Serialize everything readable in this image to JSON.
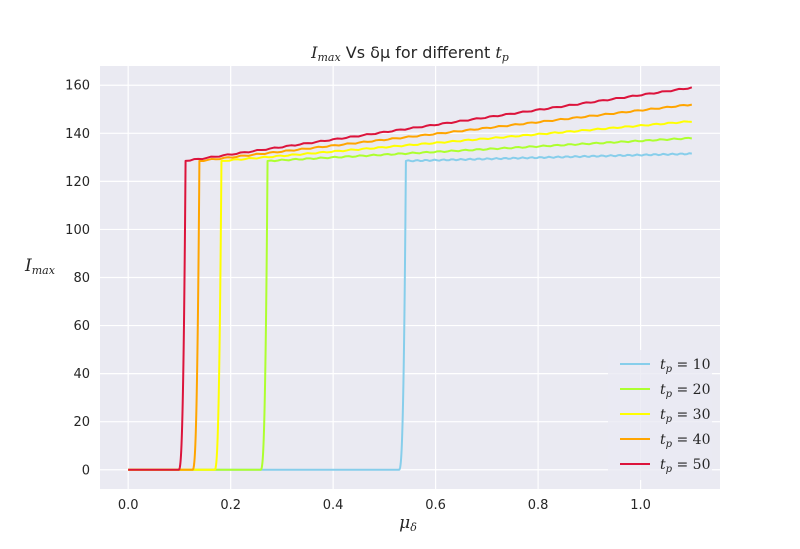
{
  "chart_data": {
    "type": "line",
    "title": {
      "base": "I",
      "base_sub": "max",
      "mid": " Vs δμ for different ",
      "end": "t",
      "end_sub": "p"
    },
    "xlabel": {
      "base": "μ",
      "sub": "δ"
    },
    "ylabel": {
      "base": "I",
      "sub": "max"
    },
    "xlim": [
      -0.055,
      1.155
    ],
    "ylim": [
      -8,
      168
    ],
    "xticks": [
      0.0,
      0.2,
      0.4,
      0.6,
      0.8,
      1.0
    ],
    "xtick_labels": [
      "0.0",
      "0.2",
      "0.4",
      "0.6",
      "0.8",
      "1.0"
    ],
    "yticks": [
      0,
      20,
      40,
      60,
      80,
      100,
      120,
      140,
      160
    ],
    "ytick_labels": [
      "0",
      "20",
      "40",
      "60",
      "80",
      "100",
      "120",
      "140",
      "160"
    ],
    "grid": true,
    "legend_position": "lower-right",
    "background": "#eaeaf2",
    "series": [
      {
        "name": "t_p = 10",
        "label_base": "t",
        "label_sub": "p",
        "label_value": " = 10",
        "color": "#87ceeb",
        "threshold": 0.54,
        "plateau_start": 128.5,
        "end_value": 131.5,
        "x_end": 1.1
      },
      {
        "name": "t_p = 20",
        "label_base": "t",
        "label_sub": "p",
        "label_value": " = 20",
        "color": "#adff2f",
        "threshold": 0.27,
        "plateau_start": 128.5,
        "end_value": 138.0,
        "x_end": 1.1
      },
      {
        "name": "t_p = 30",
        "label_base": "t",
        "label_sub": "p",
        "label_value": " = 30",
        "color": "#ffff00",
        "threshold": 0.18,
        "plateau_start": 128.5,
        "end_value": 145.0,
        "x_end": 1.1
      },
      {
        "name": "t_p = 40",
        "label_base": "t",
        "label_sub": "p",
        "label_value": " = 40",
        "color": "#ffa500",
        "threshold": 0.137,
        "plateau_start": 128.5,
        "end_value": 152.0,
        "x_end": 1.1
      },
      {
        "name": "t_p = 50",
        "label_base": "t",
        "label_sub": "p",
        "label_value": " = 50",
        "color": "#dc143c",
        "threshold": 0.11,
        "plateau_start": 128.5,
        "end_value": 159.0,
        "x_end": 1.1
      }
    ]
  }
}
